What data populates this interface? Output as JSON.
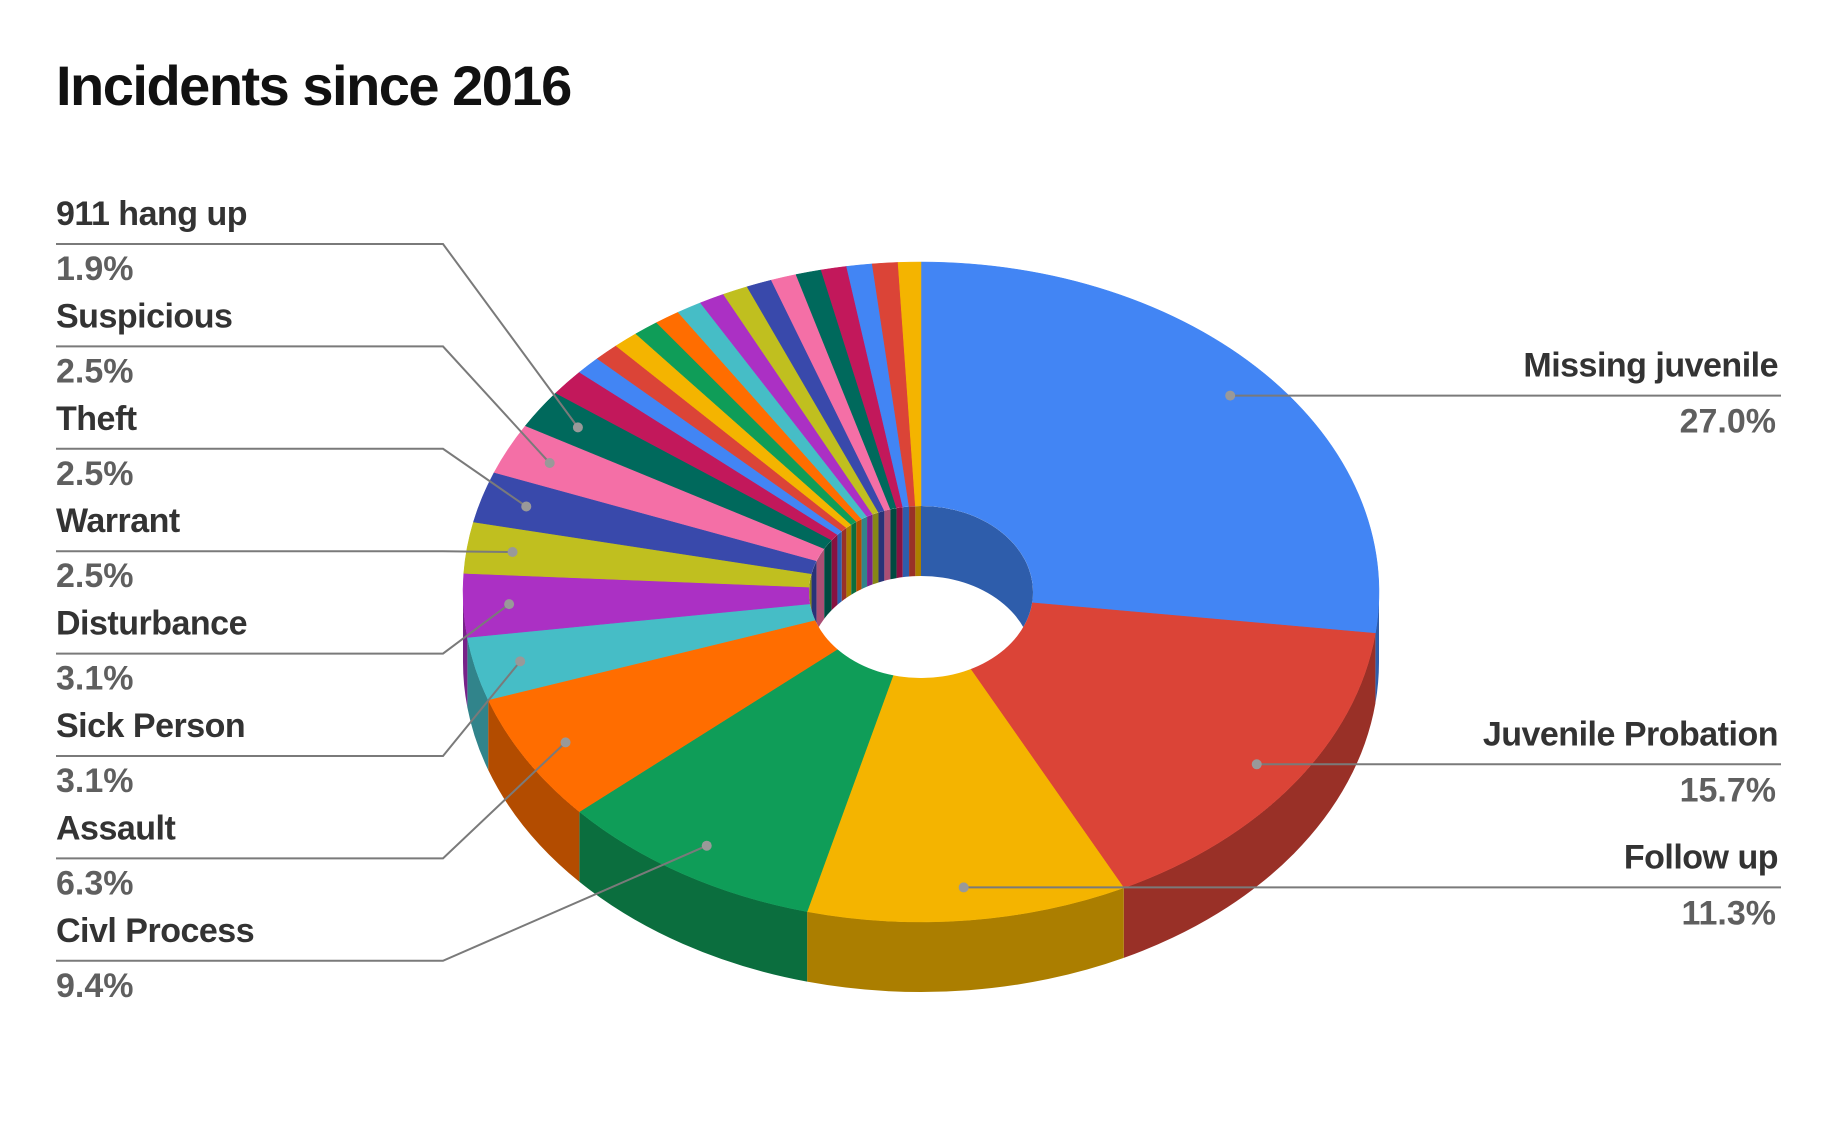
{
  "chart_data": {
    "type": "donut",
    "title": "Incidents since 2016",
    "categories": [
      "Missing juvenile",
      "Juvenile Probation",
      "Follow up",
      "Civl Process",
      "Assault",
      "Sick Person",
      "Disturbance",
      "Warrant",
      "Theft",
      "Suspicious",
      "911 hang up",
      null,
      null,
      null,
      null,
      null,
      null,
      null,
      null,
      null,
      null,
      null,
      null,
      null,
      null,
      null,
      null
    ],
    "values": [
      27.0,
      15.7,
      11.3,
      9.4,
      6.3,
      3.1,
      3.1,
      2.5,
      2.5,
      2.5,
      1.9,
      1.3,
      0.9,
      0.9,
      0.9,
      0.9,
      0.9,
      0.9,
      0.9,
      0.9,
      0.9,
      0.9,
      0.9,
      0.9,
      0.9,
      0.9,
      0.8
    ],
    "value_labels": [
      "27.0%",
      "15.7%",
      "11.3%",
      "9.4%",
      "6.3%",
      "3.1%",
      "3.1%",
      "2.5%",
      "2.5%",
      "2.5%",
      "1.9%",
      null,
      null,
      null,
      null,
      null,
      null,
      null,
      null,
      null,
      null,
      null,
      null,
      null,
      null,
      null,
      null
    ],
    "colors": [
      "#4285f4",
      "#db4437",
      "#f4b400",
      "#0f9d58",
      "#ff6d00",
      "#46bdc6",
      "#ab30c4",
      "#c0bf1f",
      "#3949ab",
      "#f46fa6",
      "#00695c",
      "#c2185b",
      "#4285f4",
      "#db4437",
      "#f4b400",
      "#0f9d58",
      "#ff6d00",
      "#46bdc6",
      "#ab30c4",
      "#c0bf1f",
      "#3949ab",
      "#f46fa6",
      "#00695c",
      "#c2185b",
      "#4285f4",
      "#db4437",
      "#f4b400"
    ]
  }
}
